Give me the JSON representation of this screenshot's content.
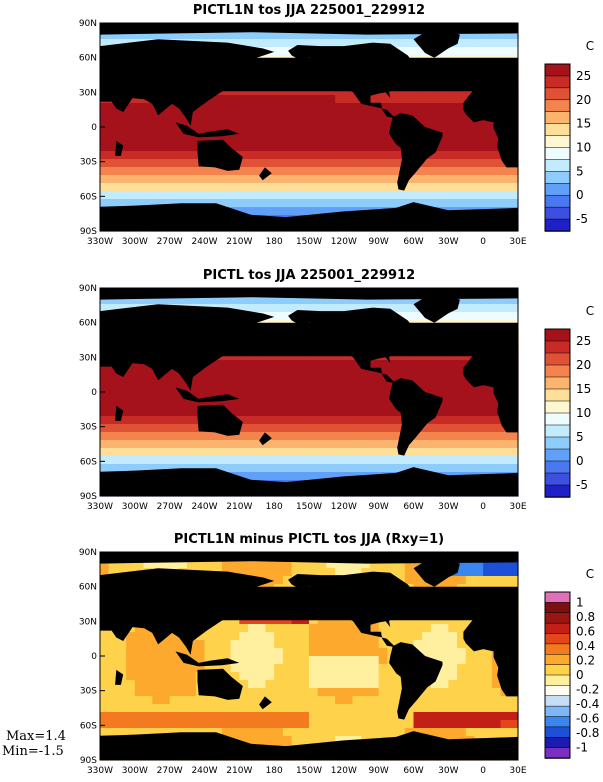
{
  "chart_data": [
    {
      "type": "heatmap",
      "title": "PICTL1N tos JJA 225001_229912",
      "units": "C",
      "xlabel": "",
      "ylabel": "",
      "xlim": [
        -330,
        30
      ],
      "ylim": [
        -90,
        90
      ],
      "x_ticks": [
        "330W",
        "300W",
        "270W",
        "240W",
        "210W",
        "180",
        "150W",
        "120W",
        "90W",
        "60W",
        "30W",
        "0",
        "30E"
      ],
      "y_ticks": [
        "90N",
        "60N",
        "30N",
        "0",
        "30S",
        "60S",
        "90S"
      ],
      "colorbar": {
        "levels": [
          -5,
          0,
          5,
          10,
          15,
          20,
          25
        ],
        "labels": [
          "25",
          "20",
          "15",
          "10",
          "5",
          "0",
          "-5"
        ],
        "colors": [
          "#2020c8",
          "#3c4fe0",
          "#4a78f0",
          "#61a0f8",
          "#8ecdfb",
          "#c2ecfd",
          "#eefbff",
          "#fff6d2",
          "#fedf9a",
          "#fbb46e",
          "#f3844e",
          "#e05236",
          "#c82a25",
          "#a5121b"
        ]
      }
    },
    {
      "type": "heatmap",
      "title": "PICTL tos JJA 225001_229912",
      "units": "C",
      "xlabel": "",
      "ylabel": "",
      "xlim": [
        -330,
        30
      ],
      "ylim": [
        -90,
        90
      ],
      "x_ticks": [
        "330W",
        "300W",
        "270W",
        "240W",
        "210W",
        "180",
        "150W",
        "120W",
        "90W",
        "60W",
        "30W",
        "0",
        "30E"
      ],
      "y_ticks": [
        "90N",
        "60N",
        "30N",
        "0",
        "30S",
        "60S",
        "90S"
      ],
      "colorbar": {
        "levels": [
          -5,
          0,
          5,
          10,
          15,
          20,
          25
        ],
        "labels": [
          "25",
          "20",
          "15",
          "10",
          "5",
          "0",
          "-5"
        ],
        "colors": [
          "#2020c8",
          "#3c4fe0",
          "#4a78f0",
          "#61a0f8",
          "#8ecdfb",
          "#c2ecfd",
          "#eefbff",
          "#fff6d2",
          "#fedf9a",
          "#fbb46e",
          "#f3844e",
          "#e05236",
          "#c82a25",
          "#a5121b"
        ]
      }
    },
    {
      "type": "heatmap",
      "title": "PICTL1N minus PICTL tos JJA (Rxy=1)",
      "units": "C",
      "xlabel": "",
      "ylabel": "",
      "xlim": [
        -330,
        30
      ],
      "ylim": [
        -90,
        90
      ],
      "x_ticks": [
        "330W",
        "300W",
        "270W",
        "240W",
        "210W",
        "180",
        "150W",
        "120W",
        "90W",
        "60W",
        "30W",
        "0",
        "30E"
      ],
      "y_ticks": [
        "90N",
        "60N",
        "30N",
        "0",
        "30S",
        "60S",
        "90S"
      ],
      "max": "Max=1.4",
      "min": "Min=-1.5",
      "colorbar": {
        "levels": [
          -1,
          -0.8,
          -0.6,
          -0.4,
          -0.2,
          0,
          0.2,
          0.4,
          0.6,
          0.8,
          1
        ],
        "labels": [
          "1",
          "0.8",
          "0.6",
          "0.4",
          "0.2",
          "0",
          "-0.2",
          "-0.4",
          "-0.6",
          "-0.8",
          "-1"
        ],
        "colors": [
          "#7b2fc0",
          "#1b1bb0",
          "#1d4fd8",
          "#3a86f0",
          "#7fb6f5",
          "#c7def7",
          "#fffdf0",
          "#fff0a0",
          "#fed24a",
          "#fca92e",
          "#f47a20",
          "#e2461a",
          "#c21f17",
          "#9a1612",
          "#7c1010",
          "#e070b8"
        ]
      }
    }
  ]
}
